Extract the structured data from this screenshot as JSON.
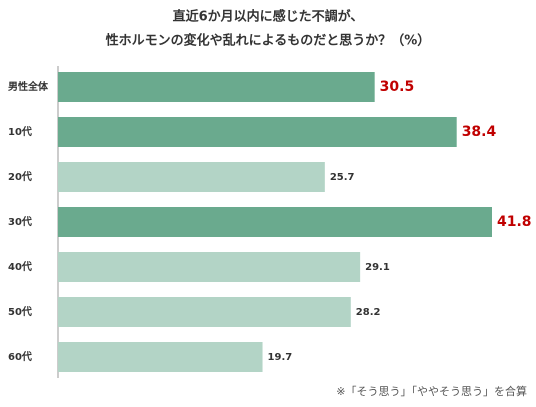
{
  "chart_data": {
    "type": "hbar",
    "title": [
      "直近6か月以内に感じた不調が、",
      "性ホルモンの変化や乱れによるものだと思うか？（%）"
    ],
    "categories": [
      "男性全体",
      "10代",
      "20代",
      "30代",
      "40代",
      "50代",
      "60代"
    ],
    "values": [
      30.5,
      38.4,
      25.7,
      41.8,
      29.1,
      28.2,
      19.7
    ],
    "colors": [
      "#6aaa8e",
      "#6aaa8e",
      "#b3d4c6",
      "#6aaa8e",
      "#b3d4c6",
      "#b3d4c6",
      "#b3d4c6"
    ],
    "highlight_color": "#6aaa8e",
    "highlight_label_color": "#c00000",
    "note": "※「そう思う」「ややそう思う」を合算"
  }
}
